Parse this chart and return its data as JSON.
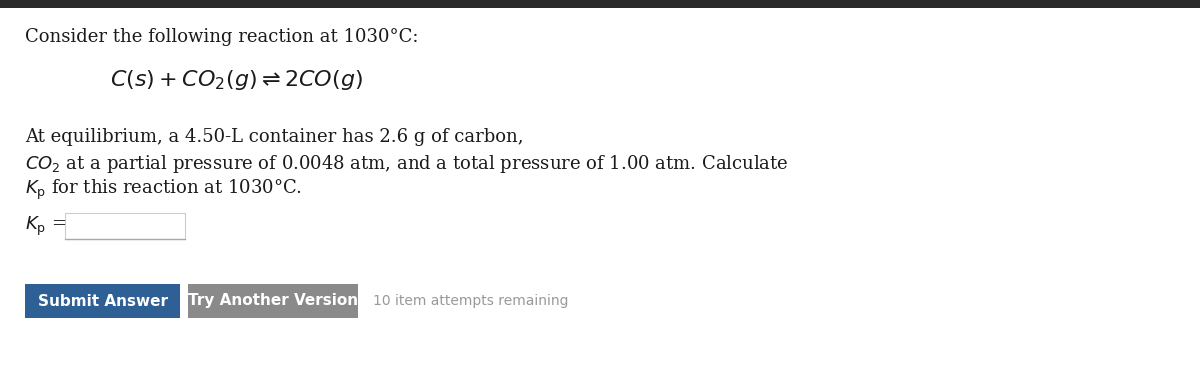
{
  "bg_color": "#ffffff",
  "top_bar_color": "#2a2a2a",
  "title_text": "Consider the following reaction at 1030°C:",
  "body_line1": "At equilibrium, a 4.50-L container has 2.6 g of carbon,",
  "body_line2_suffix": " at a partial pressure of 0.0048 atm, and a total pressure of 1.00 atm. Calculate",
  "body_line3_suffix": " for this reaction at 1030°C.",
  "submit_text": "Submit Answer",
  "try_text": "Try Another Version",
  "attempts_text": "10 item attempts remaining",
  "submit_color": "#2E6096",
  "try_color": "#8a8a8a",
  "attempts_color": "#999999",
  "text_color": "#1a1a1a",
  "font_size_title": 13,
  "font_size_body": 13,
  "font_size_equation": 15,
  "font_size_kp": 13,
  "font_size_buttons": 11
}
